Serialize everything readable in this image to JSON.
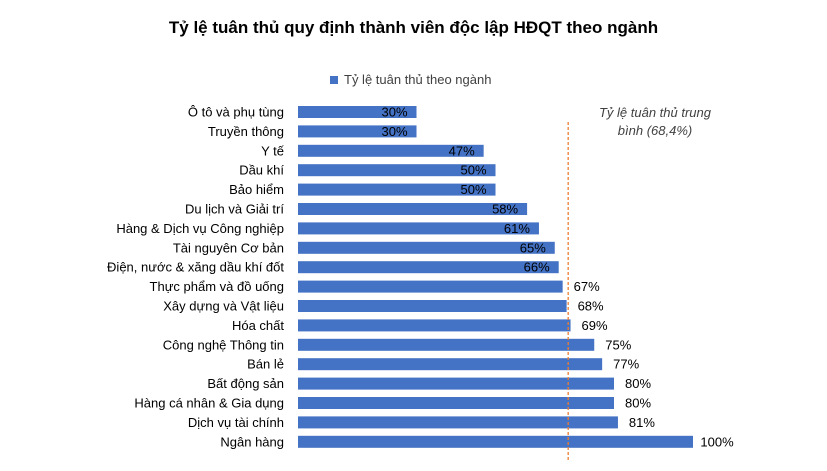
{
  "chart_data": {
    "type": "bar",
    "orientation": "horizontal",
    "title": "Tỷ lệ tuân thủ quy định thành viên độc lập HĐQT theo ngành",
    "categories": [
      "Ô tô và phụ tùng",
      "Truyền thông",
      "Y tế",
      "Dầu khí",
      "Bảo hiểm",
      "Du lịch và Giải trí",
      "Hàng & Dịch vụ Công nghiệp",
      "Tài nguyên Cơ bản",
      "Điện, nước & xăng dầu khí đốt",
      "Thực phẩm và đồ uống",
      "Xây dựng và Vật liệu",
      "Hóa chất",
      "Công nghệ Thông tin",
      "Bán lẻ",
      "Bất động sản",
      "Hàng cá nhân & Gia dụng",
      "Dịch vụ tài chính",
      "Ngân hàng"
    ],
    "series": [
      {
        "name": "Tỷ lệ tuân thủ theo ngành",
        "color": "#4472C4",
        "values": [
          30,
          30,
          47,
          50,
          50,
          58,
          61,
          65,
          66,
          67,
          68,
          69,
          75,
          77,
          80,
          80,
          81,
          100
        ],
        "labels": [
          "30%",
          "30%",
          "47%",
          "50%",
          "50%",
          "58%",
          "61%",
          "65%",
          "66%",
          "67%",
          "68%",
          "69%",
          "75%",
          "77%",
          "80%",
          "80%",
          "81%",
          "100%"
        ]
      }
    ],
    "average": {
      "value": 68.4,
      "label_line1": "Tỷ lệ tuân thủ trung",
      "label_line2": "bình (68,4%)",
      "color": "#ED7D31",
      "style": "dashed"
    },
    "xlim": [
      0,
      100
    ],
    "grid": false,
    "legend_position": "top"
  }
}
